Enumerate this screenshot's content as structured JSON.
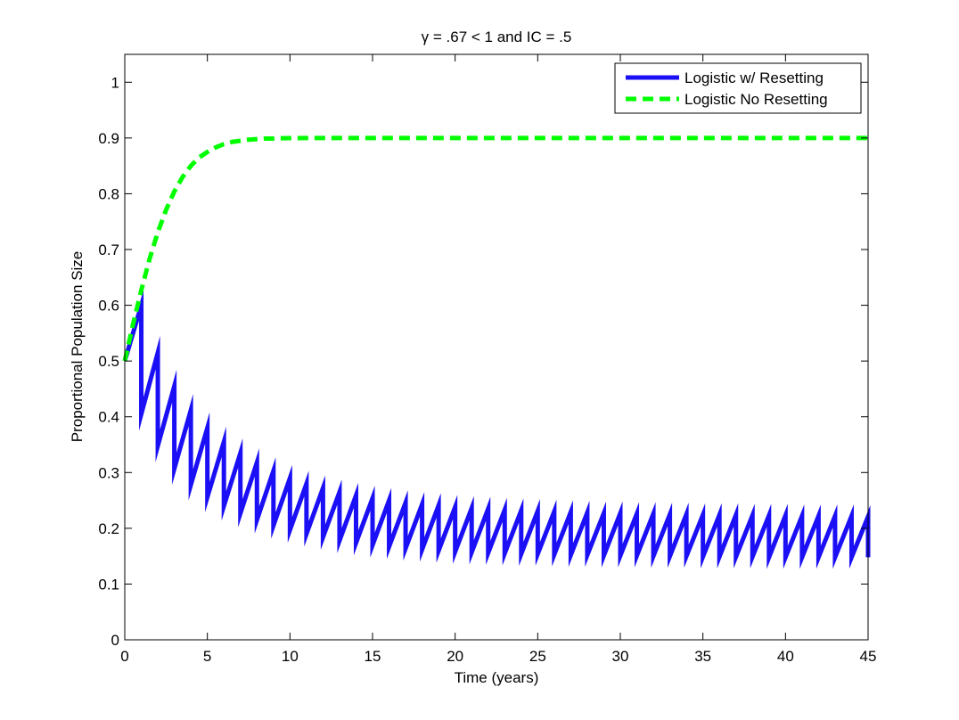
{
  "chart_data": {
    "type": "line",
    "title": "γ = .67 < 1 and IC = .5",
    "xlabel": "Time (years)",
    "ylabel": "Proportional Population Size",
    "xlim": [
      0,
      45
    ],
    "ylim": [
      0,
      1.05
    ],
    "xticks": [
      0,
      5,
      10,
      15,
      20,
      25,
      30,
      35,
      40,
      45
    ],
    "xtick_labels": [
      "0",
      "5",
      "10",
      "15",
      "20",
      "25",
      "30",
      "35",
      "40",
      "45"
    ],
    "yticks": [
      0,
      0.1,
      0.2,
      0.3,
      0.4,
      0.5,
      0.6,
      0.7,
      0.8,
      0.9,
      1
    ],
    "ytick_labels": [
      "0",
      "0.1",
      "0.2",
      "0.3",
      "0.4",
      "0.5",
      "0.6",
      "0.7",
      "0.8",
      "0.9",
      "1"
    ],
    "grid": false,
    "legend_position": "top-right",
    "series": [
      {
        "name": "Logistic w/ Resetting",
        "color": "#1a0ff5",
        "style": "solid",
        "x": [
          0,
          1,
          1,
          2,
          2,
          3,
          3,
          4,
          4,
          5,
          5,
          6,
          6,
          7,
          7,
          8,
          8,
          9,
          9,
          10,
          10,
          11,
          11,
          12,
          12,
          13,
          13,
          14,
          14,
          15,
          15,
          16,
          16,
          17,
          17,
          18,
          18,
          19,
          19,
          20,
          20,
          21,
          21,
          22,
          22,
          23,
          23,
          24,
          24,
          25,
          25,
          26,
          26,
          27,
          27,
          28,
          28,
          29,
          29,
          30,
          30,
          31,
          31,
          32,
          32,
          33,
          33,
          34,
          34,
          35,
          35,
          36,
          36,
          37,
          37,
          38,
          38,
          39,
          39,
          40,
          40,
          41,
          41,
          42,
          42,
          43,
          43,
          44,
          44,
          45,
          45
        ],
        "y": [
          0.5,
          0.6,
          0.405,
          0.515,
          0.348,
          0.455,
          0.307,
          0.412,
          0.278,
          0.38,
          0.256,
          0.355,
          0.24,
          0.335,
          0.227,
          0.318,
          0.215,
          0.303,
          0.205,
          0.29,
          0.197,
          0.28,
          0.19,
          0.272,
          0.184,
          0.265,
          0.178,
          0.259,
          0.174,
          0.254,
          0.17,
          0.25,
          0.167,
          0.246,
          0.164,
          0.243,
          0.162,
          0.241,
          0.16,
          0.238,
          0.158,
          0.236,
          0.157,
          0.235,
          0.156,
          0.233,
          0.155,
          0.232,
          0.154,
          0.231,
          0.154,
          0.23,
          0.153,
          0.229,
          0.152,
          0.228,
          0.152,
          0.227,
          0.151,
          0.227,
          0.151,
          0.226,
          0.151,
          0.226,
          0.15,
          0.225,
          0.15,
          0.225,
          0.15,
          0.224,
          0.149,
          0.224,
          0.149,
          0.224,
          0.149,
          0.223,
          0.149,
          0.223,
          0.148,
          0.223,
          0.148,
          0.222,
          0.148,
          0.222,
          0.148,
          0.222,
          0.148,
          0.222,
          0.148,
          0.221,
          0.148
        ]
      },
      {
        "name": "Logistic No Resetting",
        "color": "#00ff00",
        "style": "dashed",
        "x": [
          0,
          0.5,
          1,
          1.5,
          2,
          2.5,
          3,
          3.5,
          4,
          4.5,
          5,
          5.5,
          6,
          6.5,
          7,
          7.5,
          8,
          8.5,
          9,
          9.5,
          10,
          11,
          12,
          13,
          14,
          15,
          17,
          20,
          25,
          30,
          35,
          40,
          45
        ],
        "y": [
          0.5,
          0.566,
          0.627,
          0.683,
          0.731,
          0.771,
          0.804,
          0.83,
          0.85,
          0.865,
          0.875,
          0.883,
          0.889,
          0.893,
          0.895,
          0.897,
          0.898,
          0.899,
          0.899,
          0.8995,
          0.8998,
          0.8999,
          0.9,
          0.9,
          0.9,
          0.9,
          0.9,
          0.9,
          0.9,
          0.9,
          0.9,
          0.9,
          0.9
        ]
      }
    ]
  }
}
